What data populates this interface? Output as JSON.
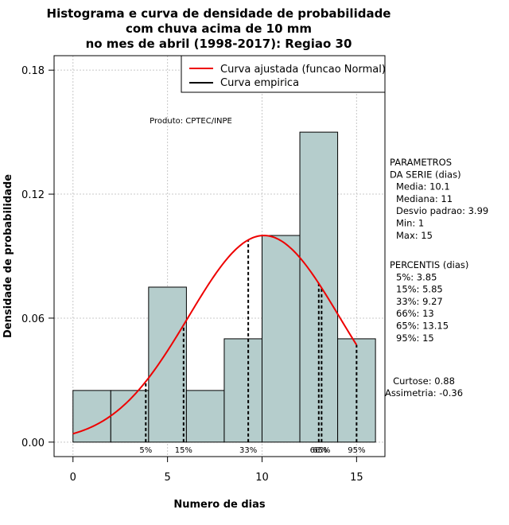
{
  "chart_data": {
    "type": "bar",
    "title_lines": [
      "Histograma e curva de densidade de probabilidade",
      "com chuva acima de 10 mm",
      "no mes de abril (1998-2017): Regiao 30"
    ],
    "xlabel": "Numero de dias",
    "ylabel": "Densidade de probabilidade",
    "xlim": [
      -1,
      16.5
    ],
    "ylim": [
      -0.007,
      0.187
    ],
    "x_ticks": [
      0,
      5,
      10,
      15
    ],
    "y_ticks": [
      0.0,
      0.06,
      0.12,
      0.18
    ],
    "y_tick_labels": [
      "0.00",
      "0.06",
      "0.12",
      "0.18"
    ],
    "grid": true,
    "bins": [
      {
        "start": 0,
        "end": 2,
        "density": 0.025
      },
      {
        "start": 2,
        "end": 4,
        "density": 0.025
      },
      {
        "start": 4,
        "end": 6,
        "density": 0.075
      },
      {
        "start": 6,
        "end": 8,
        "density": 0.025
      },
      {
        "start": 8,
        "end": 10,
        "density": 0.05
      },
      {
        "start": 10,
        "end": 12,
        "density": 0.1
      },
      {
        "start": 12,
        "end": 14,
        "density": 0.15
      },
      {
        "start": 14,
        "end": 16,
        "density": 0.05
      }
    ],
    "normal_curve": {
      "mean": 10.1,
      "sd": 3.99,
      "x_range": [
        0,
        15
      ],
      "color": "#ee0000"
    },
    "bar_color": "#b5cdcc",
    "legend": {
      "position": "top-right",
      "entries": [
        {
          "label": "Curva ajustada (funcao Normal)",
          "color": "#ee0000"
        },
        {
          "label": "Curva empirica",
          "color": "#000000"
        }
      ]
    },
    "product_label": "Produto: CPTEC/INPE",
    "percentile_lines": [
      {
        "label": "5%",
        "x": 3.85
      },
      {
        "label": "15%",
        "x": 5.85
      },
      {
        "label": "33%",
        "x": 9.27
      },
      {
        "label": "66%",
        "x": 13
      },
      {
        "label": "65%",
        "x": 13.15
      },
      {
        "label": "95%",
        "x": 15
      }
    ],
    "stats_block": [
      "PARAMETROS",
      "DA SERIE (dias)",
      "Media: 10.1",
      "Mediana: 11",
      "Desvio padrao: 3.99",
      "Min: 1",
      "Max: 15"
    ],
    "percentiles_block": [
      "PERCENTIS (dias)",
      "5%: 3.85",
      "15%: 5.85",
      "33%: 9.27",
      "66%: 13",
      "65%: 13.15",
      "95%: 15"
    ],
    "shape_block": [
      "Curtose: 0.88",
      "Assimetria: -0.36"
    ]
  }
}
